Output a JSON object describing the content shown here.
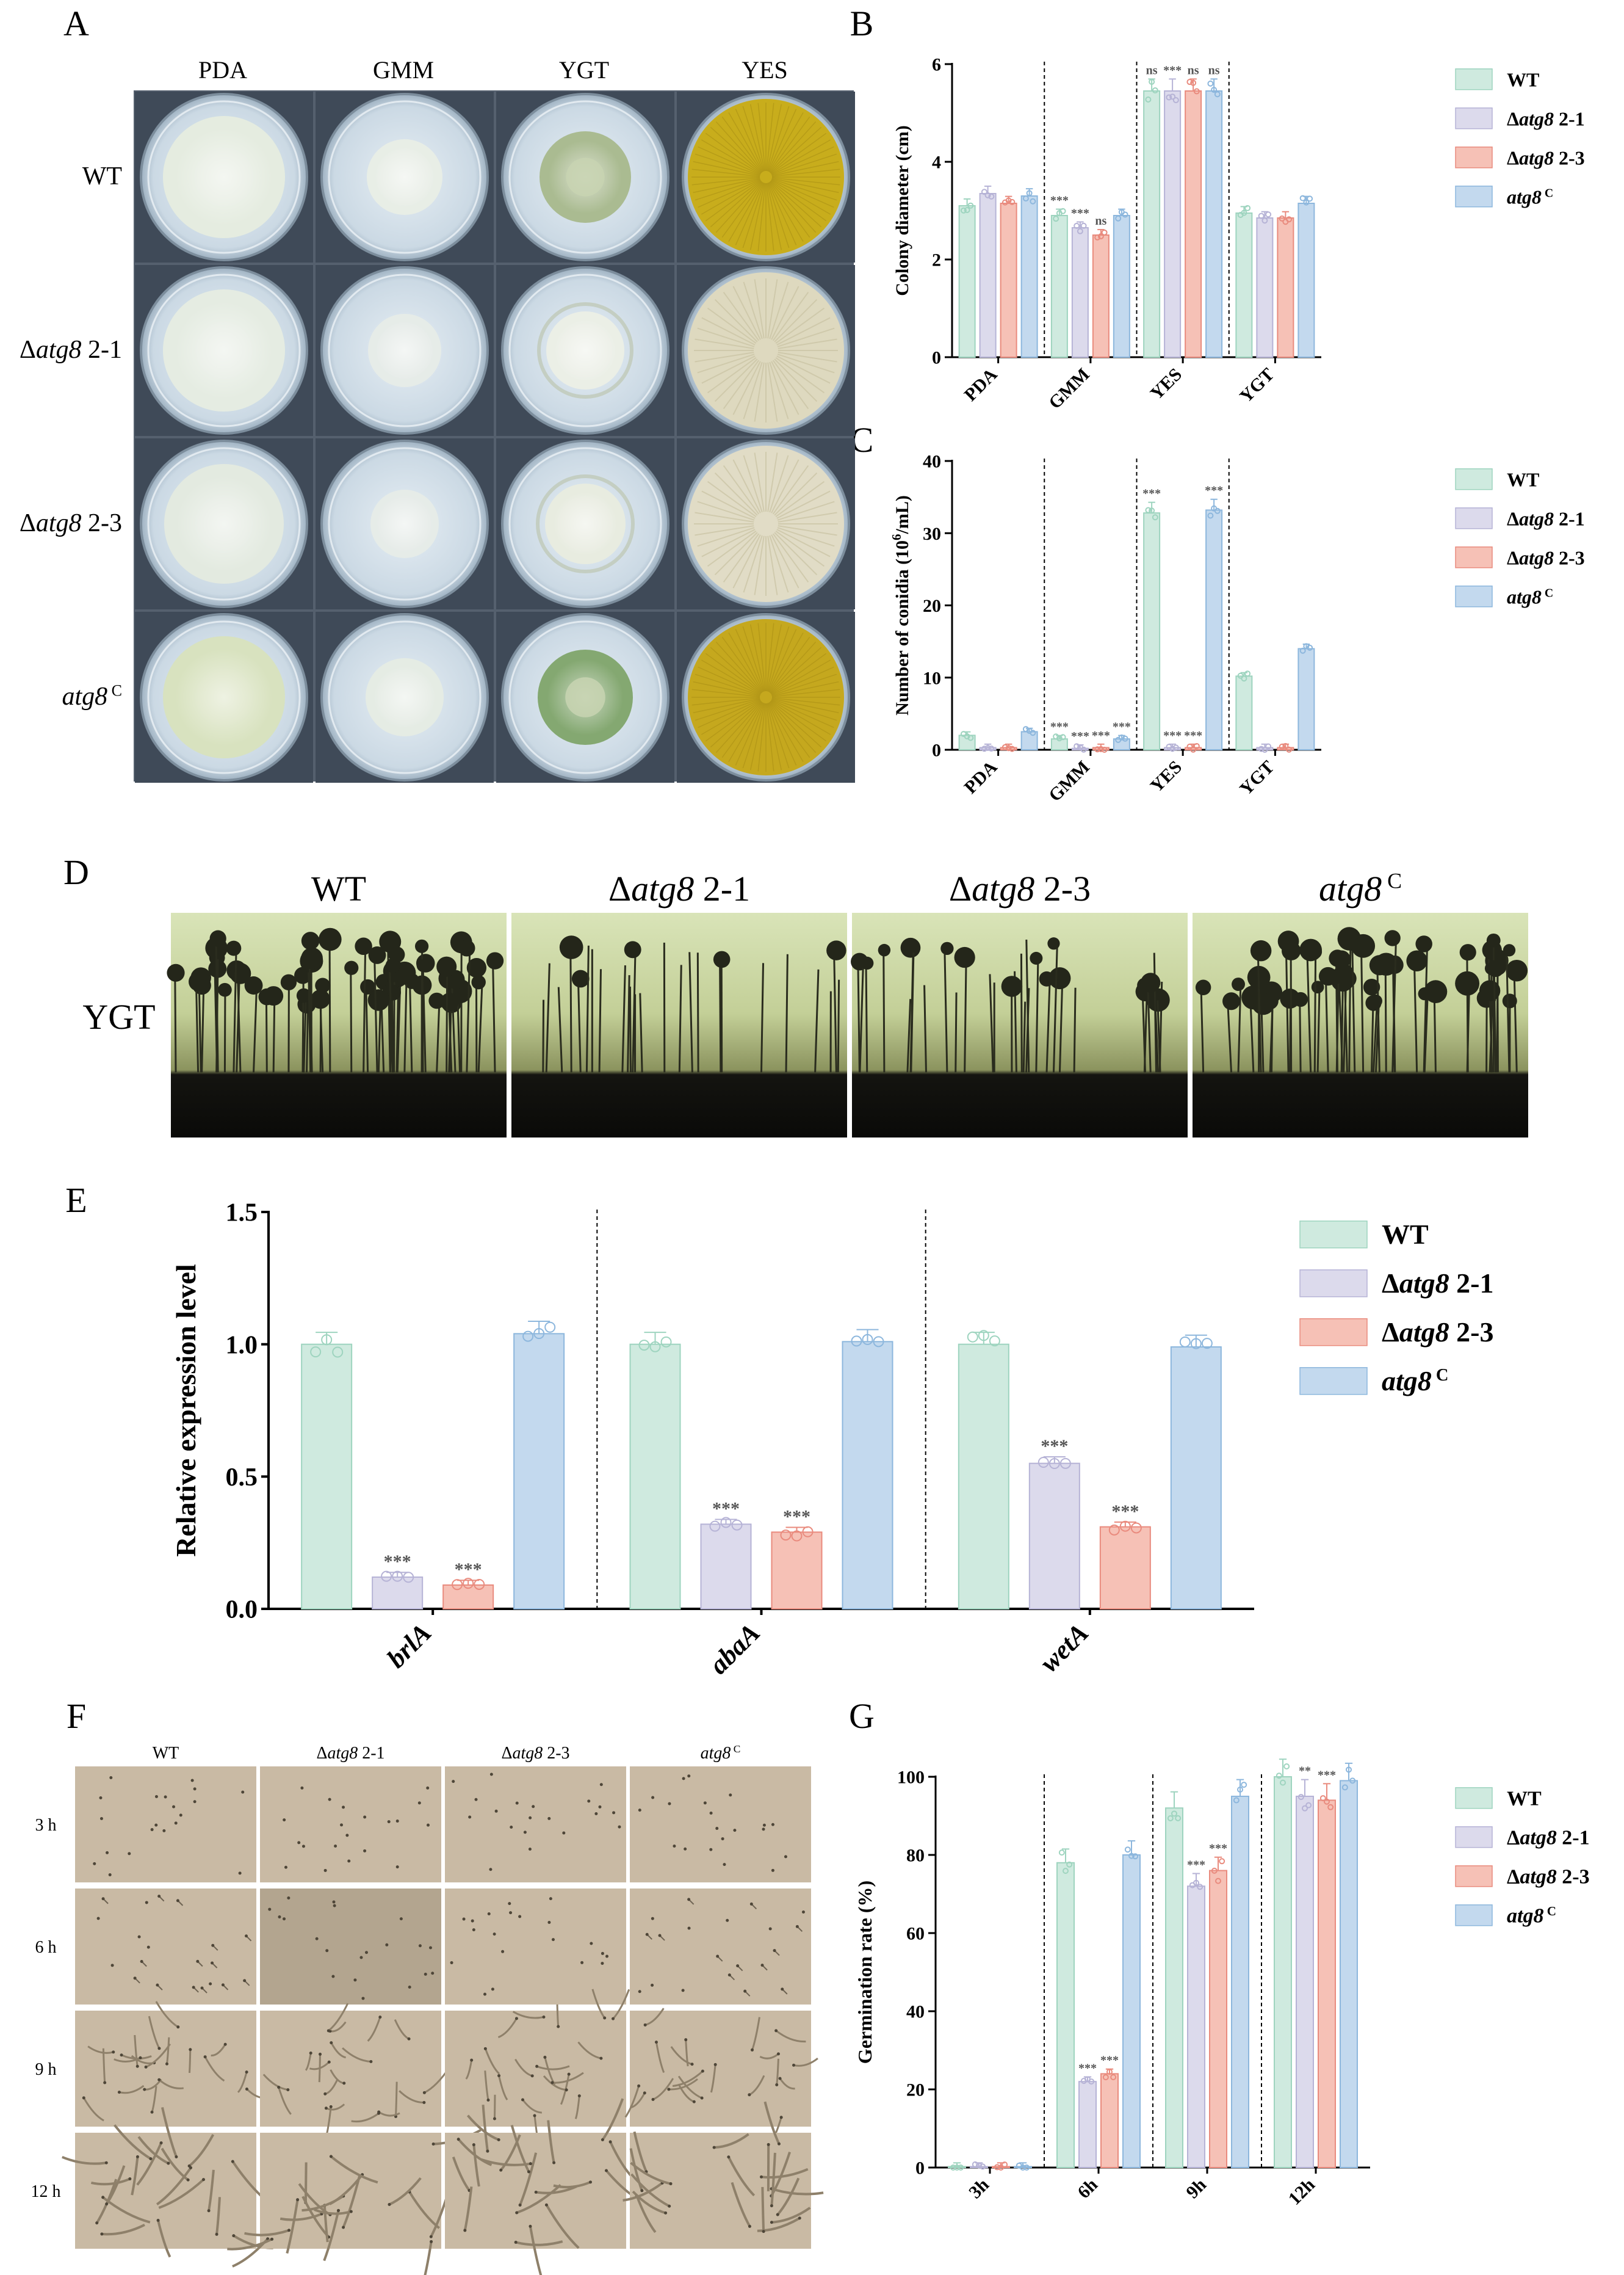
{
  "panels": {
    "A": {
      "letter": "A",
      "columns": [
        "PDA",
        "GMM",
        "YGT",
        "YES"
      ],
      "rows": [
        {
          "pre": "",
          "italic": "",
          "post": "WT"
        },
        {
          "pre": "Δ",
          "italic": "atg8",
          "post": " 2-1"
        },
        {
          "pre": "Δ",
          "italic": "atg8",
          "post": " 2-3"
        },
        {
          "pre": "",
          "italic": "atg8",
          "post": " C"
        }
      ],
      "plates": [
        [
          "#e6ecdf",
          "#e9eee6",
          "#a8b88c",
          "#c8ad1c"
        ],
        [
          "#e6ece2",
          "#e7ece8",
          "#ecefe6",
          "#ded9bf"
        ],
        [
          "#e4eadf",
          "#e7ece8",
          "#e9ecdf",
          "#e1dcc6"
        ],
        [
          "#d8e2bd",
          "#e6ece4",
          "#7fa46a",
          "#c5a81e"
        ]
      ]
    },
    "B": {
      "letter": "B",
      "chart_data": {
        "type": "bar",
        "ylabel": "Colony diameter (cm)",
        "ylim": [
          0,
          6
        ],
        "yticks": [
          "0",
          "2",
          "4",
          "6"
        ],
        "categories": [
          "PDA",
          "GMM",
          "YES",
          "YGT"
        ],
        "series": [
          {
            "name": "WT",
            "values": [
              3.1,
              2.9,
              5.45,
              2.95
            ]
          },
          {
            "name": "Δatg8 2-1",
            "values": [
              3.35,
              2.65,
              5.45,
              2.85
            ]
          },
          {
            "name": "Δatg8 2-3",
            "values": [
              3.15,
              2.5,
              5.45,
              2.85
            ]
          },
          {
            "name": "atg8 C",
            "values": [
              3.3,
              2.9,
              5.45,
              3.15
            ]
          }
        ],
        "significance": [
          [
            "",
            "***",
            "ns",
            ""
          ],
          [
            "",
            "***",
            "***",
            ""
          ],
          [
            "",
            "ns",
            "ns",
            ""
          ],
          [
            "",
            "",
            "ns",
            ""
          ]
        ],
        "grid": false,
        "legend": "right"
      }
    },
    "C": {
      "letter": "C",
      "chart_data": {
        "type": "bar",
        "ylabel_pre": "Number of conidia (10",
        "ylabel_sup": "6",
        "ylabel_post": "/mL)",
        "ylim": [
          0,
          40
        ],
        "yticks": [
          "0",
          "10",
          "20",
          "30",
          "40"
        ],
        "categories": [
          "PDA",
          "GMM",
          "YES",
          "YGT"
        ],
        "series": [
          {
            "name": "WT",
            "values": [
              2.0,
              1.5,
              32.8,
              10.2
            ]
          },
          {
            "name": "Δatg8 2-1",
            "values": [
              0.3,
              0.2,
              0.3,
              0.3
            ]
          },
          {
            "name": "Δatg8 2-3",
            "values": [
              0.3,
              0.3,
              0.3,
              0.3
            ]
          },
          {
            "name": "atg8 C",
            "values": [
              2.5,
              1.5,
              33.2,
              14.0
            ]
          }
        ],
        "significance": [
          [
            "",
            "***",
            "***",
            ""
          ],
          [
            "",
            "***",
            "***",
            ""
          ],
          [
            "",
            "***",
            "***",
            ""
          ],
          [
            "",
            "***",
            "***",
            ""
          ]
        ],
        "grid": false,
        "legend": "right"
      }
    },
    "D": {
      "letter": "D",
      "row_label": "YGT",
      "columns": [
        {
          "pre": "",
          "italic": "",
          "post": "WT"
        },
        {
          "pre": "Δ",
          "italic": "atg8",
          "post": " 2-1"
        },
        {
          "pre": "Δ",
          "italic": "atg8",
          "post": " 2-3"
        },
        {
          "pre": "",
          "italic": "atg8",
          "post": " C"
        }
      ]
    },
    "E": {
      "letter": "E",
      "chart_data": {
        "type": "bar",
        "ylabel": "Relative expression level",
        "ylim": [
          0,
          1.5
        ],
        "yticks": [
          "0.0",
          "0.5",
          "1.0",
          "1.5"
        ],
        "categories": [
          "brlA",
          "abaA",
          "wetA"
        ],
        "series": [
          {
            "name": "WT",
            "values": [
              1.0,
              1.0,
              1.0
            ]
          },
          {
            "name": "Δatg8 2-1",
            "values": [
              0.12,
              0.32,
              0.55
            ]
          },
          {
            "name": "Δatg8 2-3",
            "values": [
              0.09,
              0.29,
              0.31
            ]
          },
          {
            "name": "atg8 C",
            "values": [
              1.04,
              1.01,
              0.99
            ]
          }
        ],
        "significance": [
          [
            "",
            "",
            ""
          ],
          [
            "***",
            "***",
            "***"
          ],
          [
            "***",
            "***",
            "***"
          ],
          [
            "",
            "",
            ""
          ]
        ],
        "grid": false,
        "legend": "right"
      }
    },
    "F": {
      "letter": "F",
      "columns": [
        {
          "pre": "",
          "italic": "",
          "post": "WT"
        },
        {
          "pre": "Δ",
          "italic": "atg8",
          "post": " 2-1"
        },
        {
          "pre": "Δ",
          "italic": "atg8",
          "post": " 2-3"
        },
        {
          "pre": "",
          "italic": "atg8",
          "post": " C"
        }
      ],
      "rows": [
        "3 h",
        "6 h",
        "9 h",
        "12 h"
      ]
    },
    "G": {
      "letter": "G",
      "chart_data": {
        "type": "bar",
        "ylabel": "Germination rate (%)",
        "ylim": [
          0,
          100
        ],
        "yticks": [
          "0",
          "20",
          "40",
          "60",
          "80",
          "100"
        ],
        "categories": [
          "3h",
          "6h",
          "9h",
          "12h"
        ],
        "series": [
          {
            "name": "WT",
            "values": [
              0,
              78,
              92,
              100
            ]
          },
          {
            "name": "Δatg8 2-1",
            "values": [
              0,
              22,
              72,
              95
            ]
          },
          {
            "name": "Δatg8 2-3",
            "values": [
              0,
              24,
              76,
              94
            ]
          },
          {
            "name": "atg8 C",
            "values": [
              0,
              80,
              95,
              99
            ]
          }
        ],
        "significance": [
          [
            "",
            "",
            "",
            ""
          ],
          [
            "",
            "***",
            "***",
            "**"
          ],
          [
            "",
            "***",
            "***",
            "***"
          ],
          [
            "",
            "",
            "",
            ""
          ]
        ],
        "grid": false,
        "legend": "right"
      }
    }
  },
  "legend": [
    {
      "pre": "",
      "italic": "",
      "post": "WT"
    },
    {
      "pre": "Δ",
      "italic": "atg8",
      "post": " 2-1"
    },
    {
      "pre": "Δ",
      "italic": "atg8",
      "post": " 2-3"
    },
    {
      "pre": "",
      "italic": "atg8",
      "post": " C"
    }
  ],
  "colors": {
    "fill": [
      "#cfeadf",
      "#dcdaec",
      "#f6c1b6",
      "#c3d9ee"
    ],
    "edge": [
      "#9ed4bf",
      "#b6b3d6",
      "#e98b7e",
      "#8db7dd"
    ]
  }
}
